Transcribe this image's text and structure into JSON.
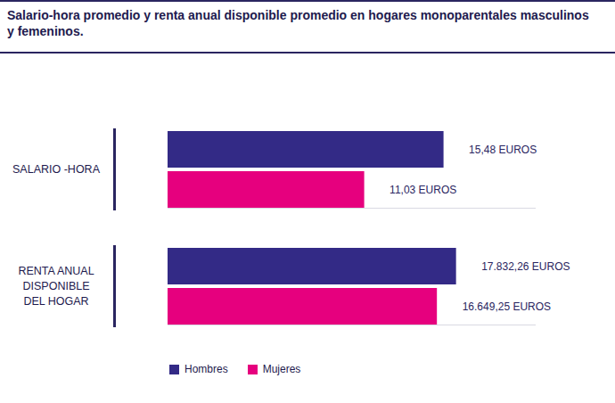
{
  "chart_data": [
    {
      "type": "bar",
      "title": "Salario-hora promedio y renta anual disponible promedio en hogares monoparentales masculinos y femeninos.",
      "orientation": "horizontal",
      "categories": [
        "SALARIO -HORA"
      ],
      "series": [
        {
          "name": "Hombres",
          "color": "#332a86",
          "values": [
            15.48
          ],
          "value_labels": [
            "15,48 EUROS"
          ]
        },
        {
          "name": "Mujeres",
          "color": "#e6007e",
          "values": [
            11.03
          ],
          "value_labels": [
            "11,03 EUROS"
          ]
        }
      ],
      "xlim": [
        0,
        20.6
      ],
      "xticks": [],
      "tick_labels": false,
      "data_labels": true,
      "legend": "bottom-left"
    },
    {
      "type": "bar",
      "orientation": "horizontal",
      "categories": [
        "RENTA ANUAL\nDISPONIBLE\nDEL HOGAR"
      ],
      "series": [
        {
          "name": "Hombres",
          "color": "#332a86",
          "values": [
            17832.26
          ],
          "value_labels": [
            "17.832,26 EUROS"
          ]
        },
        {
          "name": "Mujeres",
          "color": "#e6007e",
          "values": [
            16649.25
          ],
          "value_labels": [
            "16.649,25 EUROS"
          ]
        }
      ],
      "xlim": [
        0,
        22700
      ],
      "xticks": [],
      "tick_labels": false,
      "data_labels": true
    }
  ]
}
